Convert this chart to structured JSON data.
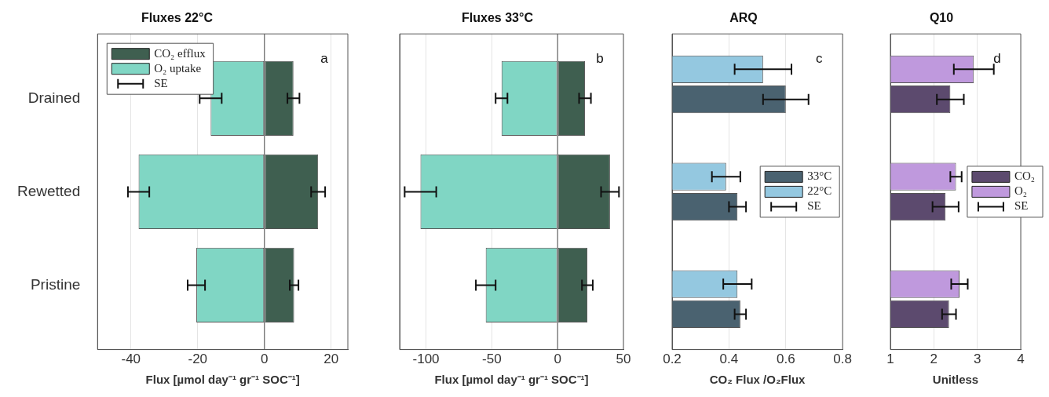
{
  "chart_data": [
    {
      "type": "bar",
      "title": "Fluxes 22°C",
      "orientation": "horizontal",
      "stacked": true,
      "categories": [
        "Drained",
        "Rewetted",
        "Pristine"
      ],
      "series": [
        {
          "name": "CO₂ efflux",
          "color": "#3f5f50",
          "values": [
            8.7,
            16.1,
            8.9
          ],
          "errors": [
            1.8,
            2.1,
            1.3
          ]
        },
        {
          "name": "O₂ uptake",
          "color": "#80d6c4",
          "values": [
            -16.1,
            -37.7,
            -20.4
          ],
          "errors": [
            3.3,
            3.2,
            2.6
          ]
        }
      ],
      "xlim": [
        -50,
        25
      ],
      "xticks": [
        -40,
        -20,
        0,
        20
      ],
      "xlabel": "Flux [µmol day⁻¹ gr⁻¹ SOC⁻¹]",
      "grid": "x",
      "legend": "top left",
      "ref_lines": [
        {
          "axis": "x",
          "value": 0
        }
      ],
      "annotations": [
        "a",
        "SE"
      ]
    },
    {
      "type": "bar",
      "title": "Fluxes 33°C",
      "orientation": "horizontal",
      "stacked": true,
      "categories": [
        null,
        null,
        null
      ],
      "series": [
        {
          "color": "#3f5f50",
          "values": [
            20.8,
            39.8,
            22.6
          ],
          "errors": [
            4.5,
            6.8,
            4.1
          ]
        },
        {
          "color": "#80d6c4",
          "values": [
            -42.6,
            -104.2,
            -54.6
          ],
          "errors": [
            4.5,
            12,
            7.5
          ]
        }
      ],
      "xlim": [
        -120,
        50
      ],
      "xticks": [
        -100,
        -50,
        0,
        50
      ],
      "xlabel": "Flux [µmol day⁻¹ gr⁻¹ SOC⁻¹]",
      "grid": "x",
      "ref_lines": [
        {
          "axis": "x",
          "value": 0
        }
      ],
      "annotations": [
        "b"
      ]
    },
    {
      "type": "bar",
      "title": "ARQ",
      "orientation": "horizontal",
      "categories": [
        null,
        null,
        null
      ],
      "series": [
        {
          "name": "33°C",
          "color": "#4a6270",
          "values": [
            0.6,
            0.43,
            0.44
          ],
          "errors": [
            0.08,
            0.03,
            0.02
          ]
        },
        {
          "name": "22°C",
          "color": "#94c8e0",
          "values": [
            0.52,
            0.39,
            0.43
          ],
          "errors": [
            0.1,
            0.05,
            0.05
          ]
        }
      ],
      "xlim": [
        0.2,
        0.8
      ],
      "xticks": [
        0.2,
        0.4,
        0.6,
        0.8
      ],
      "xlabel": "CO₂ Flux /O₂Flux",
      "grid": "x",
      "legend": "right",
      "annotations": [
        "c",
        "SE"
      ]
    },
    {
      "type": "bar",
      "title": "Q10",
      "orientation": "horizontal",
      "categories": [
        null,
        null,
        null
      ],
      "series": [
        {
          "name": "CO₂",
          "color": "#5c4a6e",
          "values": [
            2.38,
            2.27,
            2.35
          ],
          "errors": [
            0.31,
            0.3,
            0.16
          ]
        },
        {
          "name": "O₂",
          "color": "#bf99dd",
          "values": [
            2.92,
            2.51,
            2.59
          ],
          "errors": [
            0.46,
            0.13,
            0.19
          ]
        }
      ],
      "xlim": [
        1,
        4
      ],
      "xticks": [
        1,
        2,
        3,
        4
      ],
      "xlabel": "Unitless",
      "grid": "x",
      "legend": "right",
      "annotations": [
        "d",
        "SE"
      ]
    }
  ]
}
